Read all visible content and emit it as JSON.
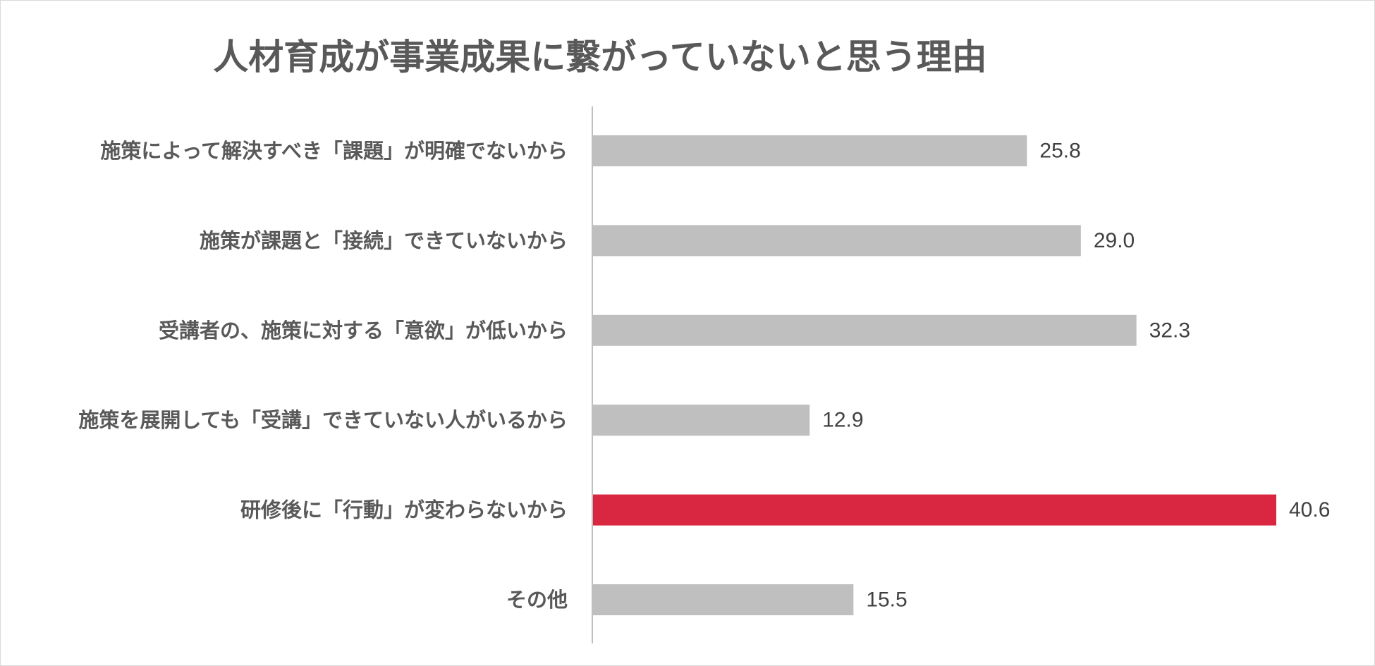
{
  "chart_data": {
    "type": "bar",
    "orientation": "horizontal",
    "title": "人材育成が事業成果に繋がっていないと思う理由",
    "categories": [
      "施策によって解決すべき「課題」が明確でないから",
      "施策が課題と「接続」できていないから",
      "受講者の、施策に対する「意欲」が低いから",
      "施策を展開しても「受講」できていない人がいるから",
      "研修後に「行動」が変わらないから",
      "その他"
    ],
    "values": [
      25.8,
      29.0,
      32.3,
      12.9,
      40.6,
      15.5
    ],
    "value_labels": [
      "25.8",
      "29.0",
      "32.3",
      "12.9",
      "40.6",
      "15.5"
    ],
    "highlight_index": 4,
    "xlim": [
      0,
      40.6
    ],
    "grid": false,
    "legend": "none",
    "colors": {
      "bar": "#bfbfbf",
      "highlight": "#d92742",
      "axis": "#bfbfbf",
      "text": "#595959"
    }
  }
}
